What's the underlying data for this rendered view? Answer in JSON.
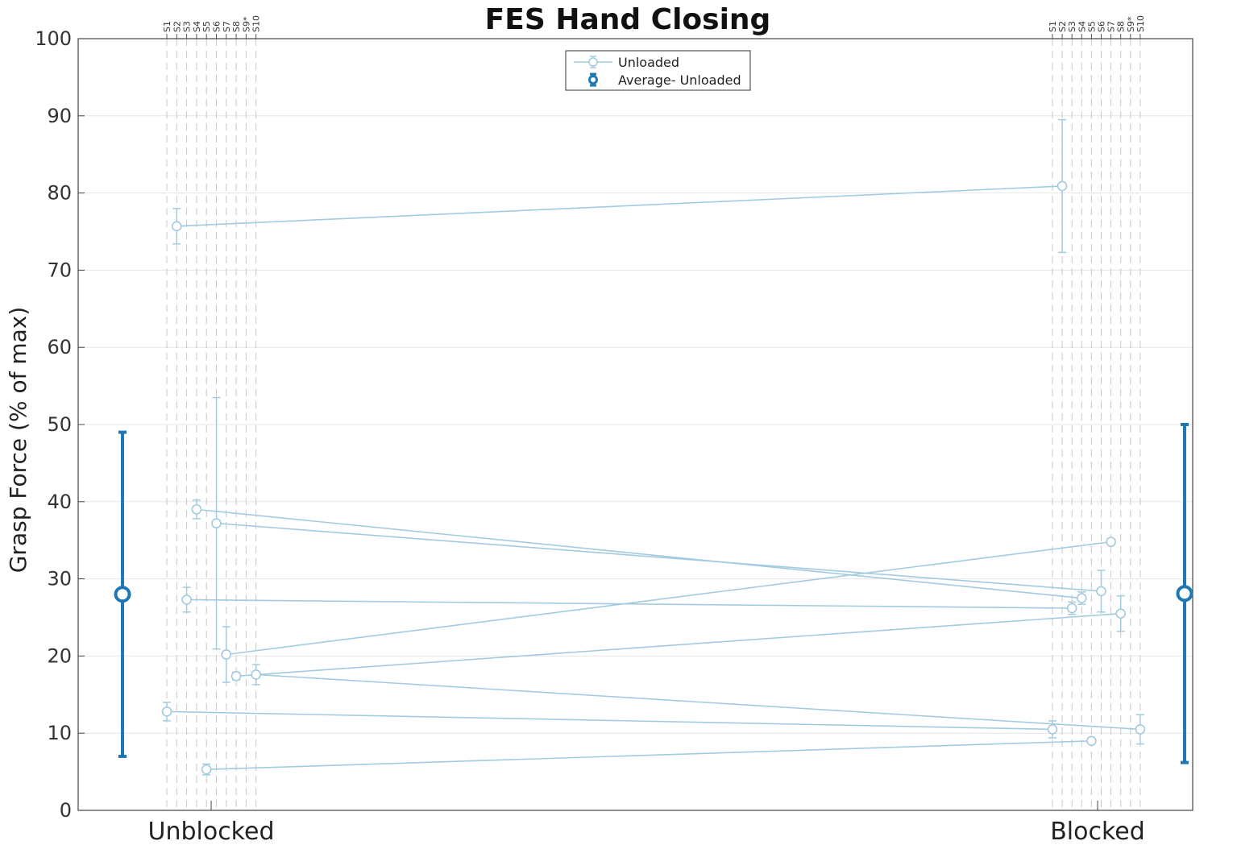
{
  "chart_data": {
    "type": "line",
    "title": "FES Hand Closing",
    "xlabel": "",
    "ylabel": "Grasp Force (% of max)",
    "ylim": [
      0,
      100
    ],
    "yticks": [
      0,
      10,
      20,
      30,
      40,
      50,
      60,
      70,
      80,
      90,
      100
    ],
    "grid": true,
    "legend_position": "top-center",
    "categories": [
      "Unblocked",
      "Blocked"
    ],
    "subjects": [
      "S1",
      "S2",
      "S3",
      "S4",
      "S5",
      "S6",
      "S7",
      "S8",
      "S9*",
      "S10"
    ],
    "colors": {
      "subject": "#a3cbe0",
      "average": "#1f77b4",
      "guide": "#c8c8c8",
      "grid": "#e6e6e6"
    },
    "series": [
      {
        "name": "Unloaded",
        "lines": [
          {
            "subject": "S1",
            "values": [
              12.8,
              10.5
            ],
            "errors": [
              1.2,
              1.1
            ]
          },
          {
            "subject": "S2",
            "values": [
              75.7,
              80.9
            ],
            "errors": [
              2.3,
              8.6
            ]
          },
          {
            "subject": "S3",
            "values": [
              27.3,
              26.2
            ],
            "errors": [
              1.6,
              0.8
            ]
          },
          {
            "subject": "S4",
            "values": [
              39.0,
              27.5
            ],
            "errors": [
              1.2,
              0.8
            ]
          },
          {
            "subject": "S5",
            "values": [
              5.3,
              9.0
            ],
            "errors": [
              0.7,
              0.3
            ]
          },
          {
            "subject": "S6",
            "values": [
              37.2,
              28.4
            ],
            "errors": [
              16.3,
              2.7
            ]
          },
          {
            "subject": "S7",
            "values": [
              20.2,
              34.8
            ],
            "errors": [
              3.6,
              0.4
            ]
          },
          {
            "subject": "S8",
            "values": [
              17.4,
              25.5
            ],
            "errors": [
              0.5,
              2.3
            ]
          },
          {
            "subject": "S10",
            "values": [
              17.6,
              10.5
            ],
            "errors": [
              1.3,
              1.9
            ]
          }
        ]
      },
      {
        "name": "Average- Unloaded",
        "values": [
          28.0,
          28.1
        ],
        "errors": [
          21.0,
          21.9
        ]
      }
    ]
  }
}
